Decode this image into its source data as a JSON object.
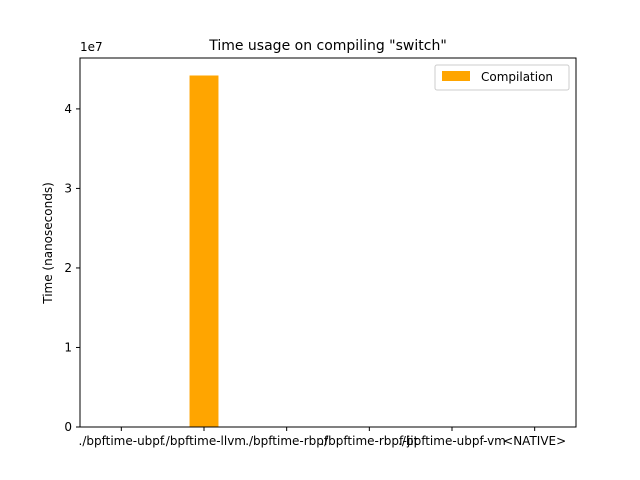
{
  "chart_data": {
    "type": "bar",
    "title": "Time usage on compiling \"switch\"",
    "xlabel": "",
    "ylabel": "Time (nanoseconds)",
    "y_offset_label": "1e7",
    "categories": [
      "./bpftime-ubpf",
      "./bpftime-llvm",
      "./bpftime-rbpf",
      "./bpftime-rbpf-jit",
      "./bpftime-ubpf-vm",
      "<NATIVE>"
    ],
    "series": [
      {
        "name": "Compilation",
        "values": [
          0,
          44200000,
          0,
          0,
          0,
          0
        ],
        "color": "#ffa500"
      }
    ],
    "ylim": [
      0,
      46400000
    ],
    "yticks": [
      0,
      10000000,
      20000000,
      30000000,
      40000000
    ],
    "ytick_labels": [
      "0",
      "1",
      "2",
      "3",
      "4"
    ],
    "legend_position": "top-right",
    "grid": false
  }
}
